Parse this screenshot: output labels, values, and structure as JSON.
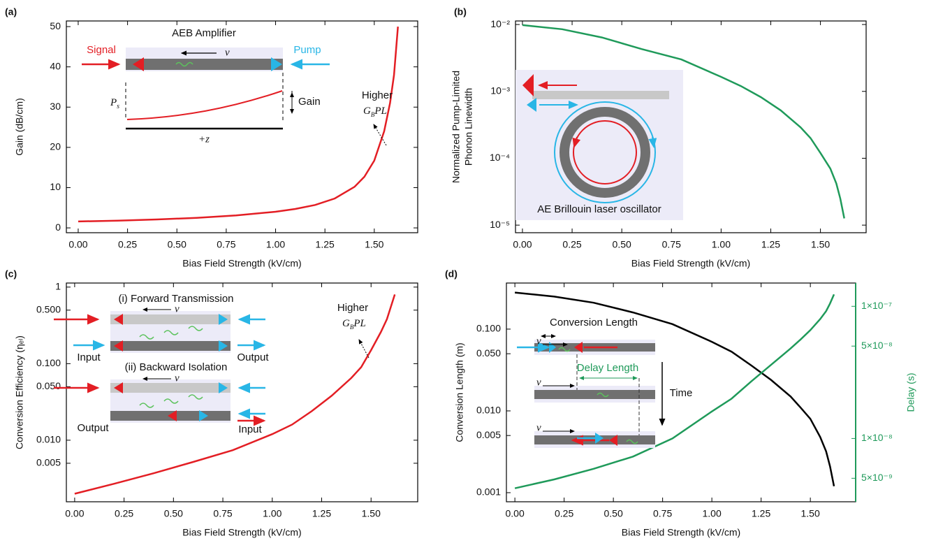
{
  "chart_data": [
    {
      "type": "line",
      "panel": "(a)",
      "xlabel": "Bias Field Strength (kV/cm)",
      "ylabel": [
        "Gain (dB/cm)"
      ],
      "x": [
        0,
        0.2,
        0.4,
        0.6,
        0.8,
        1.0,
        1.1,
        1.2,
        1.3,
        1.4,
        1.45,
        1.5,
        1.55,
        1.58,
        1.6,
        1.62
      ],
      "series": [
        {
          "color": "#e31e24",
          "values": [
            1.6,
            1.8,
            2.1,
            2.5,
            3.1,
            4.0,
            4.7,
            5.7,
            7.3,
            10.2,
            12.7,
            16.7,
            24,
            31,
            38,
            50
          ]
        }
      ],
      "xlim": [
        -0.06,
        1.72
      ],
      "ylim": [
        -1.2,
        51.4
      ],
      "ylog": false,
      "grid": false,
      "xticks": [
        {
          "value": 0,
          "label": "0.00"
        },
        {
          "value": 0.25,
          "label": "0.25"
        },
        {
          "value": 0.5,
          "label": "0.50"
        },
        {
          "value": 0.75,
          "label": "0.75"
        },
        {
          "value": 1,
          "label": "1.00"
        },
        {
          "value": 1.25,
          "label": "1.25"
        },
        {
          "value": 1.5,
          "label": "1.50"
        }
      ],
      "yticks": [
        0,
        10,
        20,
        30,
        40,
        50
      ],
      "annotations": {
        "inset_title": "AEB Amplifier",
        "signal": "Signal",
        "pump": "Pump",
        "velocity": "v",
        "ps": "P",
        "ps_sub": "s",
        "gain": "Gain",
        "z": "+z",
        "higher": "Higher",
        "gb": "G",
        "gb_sub": "B",
        "gb_rest": "PL"
      }
    },
    {
      "type": "line",
      "panel": "(b)",
      "xlabel": "Bias Field Strength (kV/cm)",
      "ylabel": [
        "Normalized Pump-Limited",
        "Phonon Linewidth"
      ],
      "x": [
        0,
        0.2,
        0.4,
        0.6,
        0.8,
        1.0,
        1.1,
        1.2,
        1.3,
        1.4,
        1.45,
        1.5,
        1.55,
        1.58,
        1.6,
        1.62
      ],
      "series": [
        {
          "color": "#1f9a5a",
          "values": [
            0.0098,
            0.0085,
            0.0064,
            0.0043,
            0.003,
            0.00165,
            0.0012,
            0.00082,
            0.00052,
            0.00029,
            0.0002,
            0.00012,
            7e-05,
            4.2e-05,
            2.5e-05,
            1.26e-05
          ]
        }
      ],
      "xlim": [
        -0.035,
        1.73
      ],
      "ylim": [
        7.7e-06,
        0.0113
      ],
      "ylog": true,
      "grid": false,
      "xticks": [
        {
          "value": 0,
          "label": "0.00"
        },
        {
          "value": 0.25,
          "label": "0.25"
        },
        {
          "value": 0.5,
          "label": "0.50"
        },
        {
          "value": 0.75,
          "label": "0.75"
        },
        {
          "value": 1,
          "label": "1.00"
        },
        {
          "value": 1.25,
          "label": "1.25"
        },
        {
          "value": 1.5,
          "label": "1.50"
        }
      ],
      "yticks": [
        {
          "value": 0.01,
          "label": "10⁻²"
        },
        {
          "value": 0.001,
          "label": "10⁻³"
        },
        {
          "value": 0.0001,
          "label": "10⁻⁴"
        },
        {
          "value": 1e-05,
          "label": "10⁻⁵"
        }
      ],
      "annotations": {
        "inset_title": "AE Brillouin laser oscillator"
      }
    },
    {
      "type": "line",
      "panel": "(c)",
      "xlabel": "Bias Field Strength (kV/cm)",
      "ylabel": [
        "Conversion Efficiency (ηₑₗ)"
      ],
      "x": [
        0,
        0.2,
        0.4,
        0.6,
        0.8,
        1.0,
        1.1,
        1.2,
        1.3,
        1.4,
        1.45,
        1.5,
        1.55,
        1.58,
        1.6,
        1.62
      ],
      "series": [
        {
          "color": "#e31e24",
          "values": [
            0.002,
            0.0027,
            0.0037,
            0.0052,
            0.0074,
            0.012,
            0.016,
            0.024,
            0.038,
            0.065,
            0.09,
            0.15,
            0.26,
            0.38,
            0.55,
            0.8
          ]
        }
      ],
      "xlim": [
        -0.042,
        1.736
      ],
      "ylim": [
        0.00157,
        1.13
      ],
      "ylog": true,
      "grid": false,
      "xticks": [
        {
          "value": 0,
          "label": "0.00"
        },
        {
          "value": 0.25,
          "label": "0.25"
        },
        {
          "value": 0.5,
          "label": "0.50"
        },
        {
          "value": 0.75,
          "label": "0.75"
        },
        {
          "value": 1,
          "label": "1.00"
        },
        {
          "value": 1.25,
          "label": "1.25"
        },
        {
          "value": 1.5,
          "label": "1.50"
        }
      ],
      "yticks": [
        1,
        {
          "value": 0.5,
          "label": "0.500"
        },
        {
          "value": 0.1,
          "label": "0.100"
        },
        {
          "value": 0.05,
          "label": "0.050"
        },
        {
          "value": 0.01,
          "label": "0.010"
        },
        0.005
      ],
      "annotations": {
        "forward": "(i) Forward Transmission",
        "backward": "(ii) Backward Isolation",
        "velocity": "v",
        "input": "Input",
        "output": "Output",
        "higher": "Higher",
        "gb": "G",
        "gb_sub": "B",
        "gb_rest": "PL"
      }
    },
    {
      "type": "line",
      "panel": "(d)",
      "xlabel": "Bias Field Strength (kV/cm)",
      "ylabel": [
        "Conversion Length (m)"
      ],
      "y2label": "Delay (s)",
      "y2color": "#1f9a5a",
      "x": [
        0,
        0.2,
        0.4,
        0.6,
        0.8,
        1.0,
        1.1,
        1.2,
        1.3,
        1.4,
        1.45,
        1.5,
        1.55,
        1.58,
        1.6,
        1.62
      ],
      "series": [
        {
          "color": "#000000",
          "values": [
            0.28,
            0.25,
            0.21,
            0.16,
            0.115,
            0.07,
            0.053,
            0.036,
            0.024,
            0.015,
            0.011,
            0.008,
            0.0048,
            0.0032,
            0.0021,
            0.0012
          ]
        },
        {
          "color": "#1f9a5a",
          "axis": "y2",
          "values": [
            4.2e-09,
            4.9e-09,
            5.9e-09,
            7.3e-09,
            1e-08,
            1.6e-08,
            2e-08,
            2.7e-08,
            3.6e-08,
            4.8e-08,
            5.6e-08,
            6.6e-08,
            8e-08,
            9.2e-08,
            1.05e-07,
            1.23e-07
          ]
        }
      ],
      "xlim": [
        -0.043,
        1.73
      ],
      "ylim": [
        0.000774,
        0.366
      ],
      "ylog": true,
      "y2lim": [
        3.32e-09,
        1.5e-07
      ],
      "y2log": true,
      "grid": false,
      "xticks": [
        {
          "value": 0,
          "label": "0.00"
        },
        {
          "value": 0.25,
          "label": "0.25"
        },
        {
          "value": 0.5,
          "label": "0.50"
        },
        {
          "value": 0.75,
          "label": "0.75"
        },
        {
          "value": 1,
          "label": "1.00"
        },
        {
          "value": 1.25,
          "label": "1.25"
        },
        {
          "value": 1.5,
          "label": "1.50"
        }
      ],
      "yticks": [
        {
          "value": 0.1,
          "label": "0.100"
        },
        {
          "value": 0.05,
          "label": "0.050"
        },
        {
          "value": 0.01,
          "label": "0.010"
        },
        0.005,
        0.001
      ],
      "y2ticks": [
        {
          "value": 1e-07,
          "label": "1×10⁻⁷"
        },
        {
          "value": 5e-08,
          "label": "5×10⁻⁸"
        },
        {
          "value": 1e-08,
          "label": "1×10⁻⁸"
        },
        {
          "value": 5e-09,
          "label": "5×10⁻⁹"
        }
      ],
      "annotations": {
        "conversion": "Conversion Length",
        "delay": "Delay Length",
        "time": "Time",
        "velocity": "v"
      }
    }
  ]
}
